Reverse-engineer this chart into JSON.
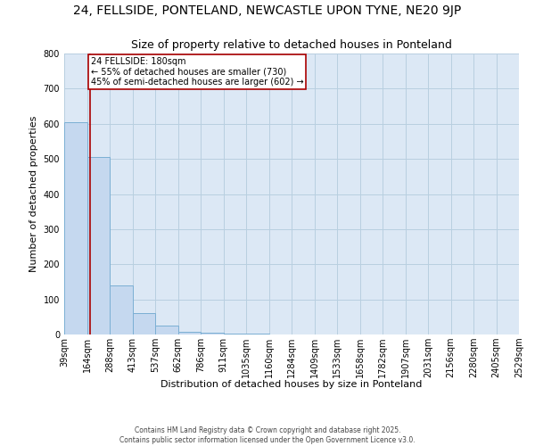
{
  "title": "24, FELLSIDE, PONTELAND, NEWCASTLE UPON TYNE, NE20 9JP",
  "subtitle": "Size of property relative to detached houses in Ponteland",
  "xlabel": "Distribution of detached houses by size in Ponteland",
  "ylabel": "Number of detached properties",
  "footer_line1": "Contains HM Land Registry data © Crown copyright and database right 2025.",
  "footer_line2": "Contains public sector information licensed under the Open Government Licence v3.0.",
  "bins": [
    39,
    164,
    288,
    413,
    537,
    662,
    786,
    911,
    1035,
    1160,
    1284,
    1409,
    1533,
    1658,
    1782,
    1907,
    2031,
    2156,
    2280,
    2405,
    2529
  ],
  "bin_labels": [
    "39sqm",
    "164sqm",
    "288sqm",
    "413sqm",
    "537sqm",
    "662sqm",
    "786sqm",
    "911sqm",
    "1035sqm",
    "1160sqm",
    "1284sqm",
    "1409sqm",
    "1533sqm",
    "1658sqm",
    "1782sqm",
    "1907sqm",
    "2031sqm",
    "2156sqm",
    "2280sqm",
    "2405sqm",
    "2529sqm"
  ],
  "bar_heights": [
    605,
    505,
    140,
    60,
    25,
    8,
    5,
    3,
    2,
    1,
    1,
    1,
    0,
    0,
    0,
    0,
    0,
    0,
    0,
    0
  ],
  "bar_color": "#c5d8ef",
  "bar_edge_color": "#7bafd4",
  "background_color": "#dce8f5",
  "grid_color": "#b8cfe0",
  "vline_x": 180,
  "vline_color": "#aa0000",
  "annotation_text": "24 FELLSIDE: 180sqm\n← 55% of detached houses are smaller (730)\n45% of semi-detached houses are larger (602) →",
  "annotation_box_color": "#aa0000",
  "annotation_text_color": "black",
  "annotation_bg": "white",
  "ylim": [
    0,
    800
  ],
  "yticks": [
    0,
    100,
    200,
    300,
    400,
    500,
    600,
    700,
    800
  ],
  "title_fontsize": 10,
  "subtitle_fontsize": 9,
  "ylabel_fontsize": 8,
  "xlabel_fontsize": 8,
  "tick_fontsize": 7,
  "footer_fontsize": 5.5
}
